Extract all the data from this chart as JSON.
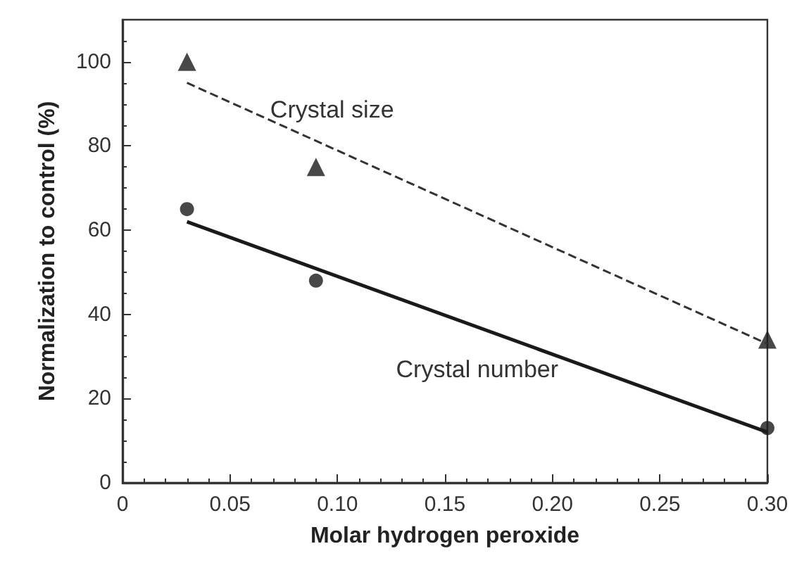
{
  "chart_data": {
    "type": "scatter",
    "xlabel": "Molar hydrogen peroxide",
    "ylabel": "Normalization to control (%)",
    "xlim": [
      0,
      0.3
    ],
    "xticks": [
      0,
      0.05,
      {
        "value": 0.1,
        "label": "0.10"
      },
      0.15,
      {
        "value": 0.2,
        "label": "0.20"
      },
      0.25,
      {
        "value": 0.3,
        "label": "0.30"
      }
    ],
    "ylim": [
      0,
      110
    ],
    "yticks": [
      0,
      20,
      40,
      60,
      80,
      100
    ],
    "grid": false,
    "series": [
      {
        "marker": "triangle",
        "color": "#1a1a1a",
        "x": [
          0.03,
          0.09,
          0.3
        ],
        "values": [
          100,
          75,
          34
        ]
      },
      {
        "marker": "circle",
        "color": "#1a1a1a",
        "x": [
          0.03,
          0.09,
          0.3
        ],
        "values": [
          65,
          48,
          13
        ]
      },
      {
        "type": "line",
        "name": "Crystal size",
        "marker": "none",
        "line_style": "dashed",
        "color": "#333333",
        "x": [
          0.03,
          0.3
        ],
        "values": [
          95,
          33
        ]
      },
      {
        "type": "line",
        "name": "Crystal number",
        "marker": "none",
        "line_style": "solid",
        "color": "#1a1a1a",
        "x": [
          0.03,
          0.3
        ],
        "values": [
          62,
          12
        ]
      }
    ]
  }
}
